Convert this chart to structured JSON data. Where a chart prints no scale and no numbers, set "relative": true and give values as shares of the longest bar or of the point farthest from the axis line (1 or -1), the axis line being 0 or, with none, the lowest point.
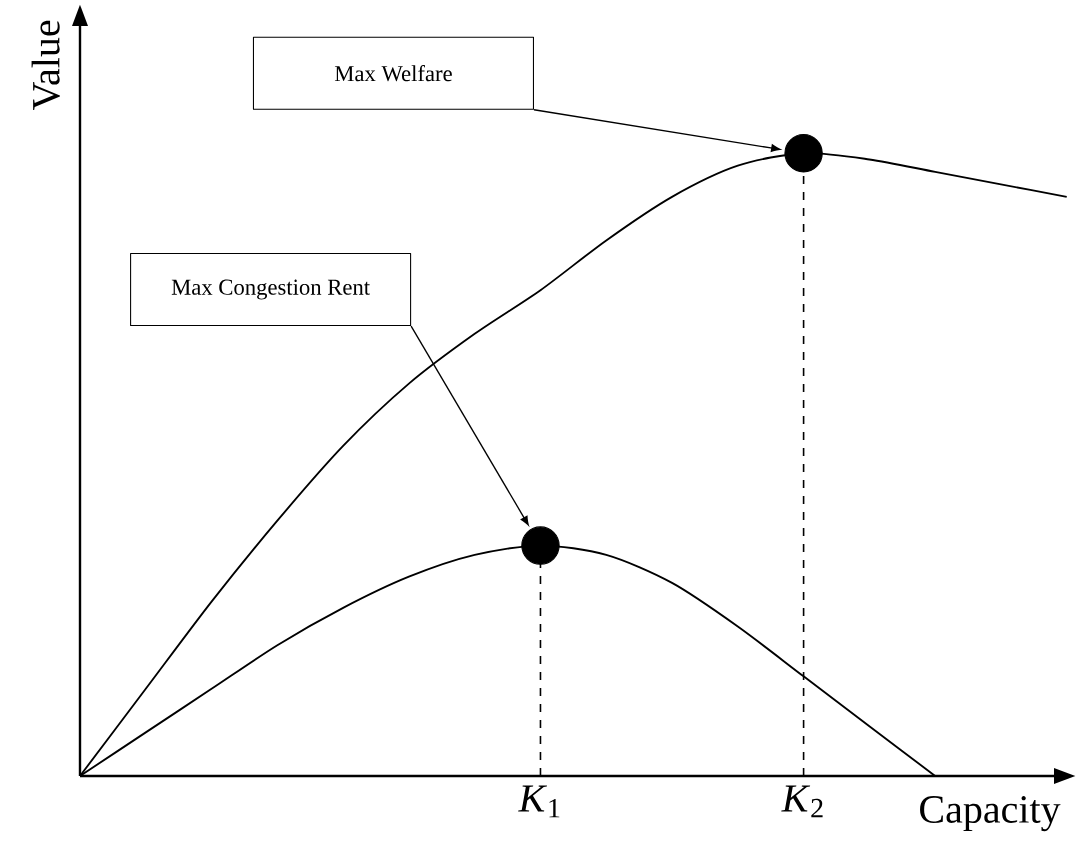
{
  "chart_data": {
    "type": "line",
    "relative": true,
    "xlabel": "Capacity",
    "ylabel": "Value",
    "categories": [
      null,
      null,
      null,
      null,
      null,
      null,
      null,
      "*K*$_{1}$",
      null,
      null,
      null,
      "*K*$_{2}$",
      null,
      null,
      null,
      null
    ],
    "series": [
      {
        "color": "#000000",
        "marker": "none",
        "values": [
          0,
          0.14,
          0.28,
          0.41,
          0.53,
          0.63,
          0.71,
          0.78,
          0.86,
          0.93,
          0.98,
          1,
          0.99,
          0.97,
          0.95,
          0.93
        ]
      },
      {
        "color": "#000000",
        "marker": "none",
        "values": [
          0,
          0.07,
          0.14,
          0.21,
          0.27,
          0.32,
          0.355,
          0.37,
          0.355,
          0.31,
          0.24,
          0.16,
          0.08,
          0,
          null,
          null
        ]
      },
      {
        "type": "lollipop",
        "color": "#000000",
        "marker": "circle",
        "line_style": "dashed",
        "values": [
          null,
          null,
          null,
          null,
          null,
          null,
          null,
          0.37,
          null,
          null,
          null,
          1,
          null,
          null,
          null,
          null
        ]
      }
    ],
    "annotations": [
      "Max Welfare",
      "Max Congestion Rent"
    ]
  }
}
